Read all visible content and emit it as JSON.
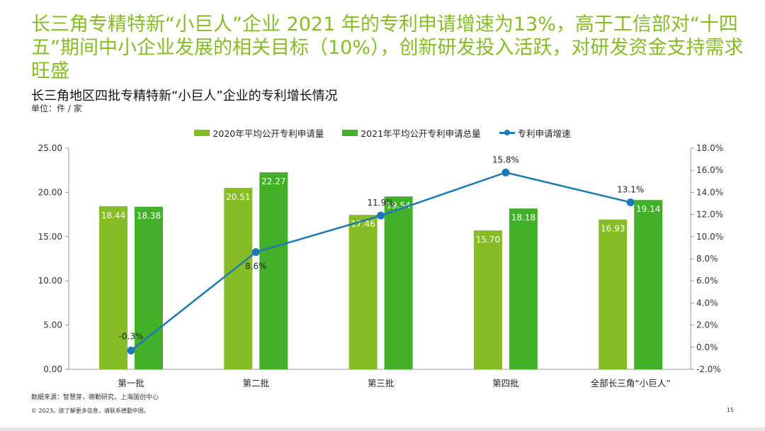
{
  "headline": "长三角专精特新“小巨人”企业 2021 年的专利申请增速为13%，高于工信部对“十四五”期间中小企业发展的相关目标（10%），创新研发投入活跃，对研发资金支持需求旺盛",
  "colors": {
    "headline": "#86BC25",
    "series_2020": "#86BC25",
    "series_2021": "#43B02A",
    "growth_line": "#1B7AB3"
  },
  "chart_data": {
    "type": "bar",
    "title": "长三角地区四批专精特新“小巨人”企业的专利增长情况",
    "unit": "单位：件 / 家",
    "legend_position": "top",
    "categories": [
      "第一批",
      "第二批",
      "第三批",
      "第四批",
      "全部长三角“小巨人”"
    ],
    "series": [
      {
        "name": "2020年平均公开专利申请量",
        "type": "bar",
        "axis": "left",
        "values": [
          18.44,
          20.51,
          17.46,
          15.7,
          16.93
        ],
        "labels": [
          "18.44",
          "20.51",
          "17.46",
          "15.70",
          "16.93"
        ]
      },
      {
        "name": "2021年平均公开专利申请总量",
        "type": "bar",
        "axis": "left",
        "values": [
          18.38,
          22.27,
          19.54,
          18.18,
          19.14
        ],
        "labels": [
          "18.38",
          "22.27",
          "19.54",
          "18.18",
          "19.14"
        ]
      },
      {
        "name": "专利申请增速",
        "type": "line",
        "axis": "right",
        "values": [
          -0.3,
          8.6,
          11.9,
          15.8,
          13.1
        ],
        "labels": [
          "-0.3%",
          "8.6%",
          "11.9%",
          "15.8%",
          "13.1%"
        ]
      }
    ],
    "y_left": {
      "range": [
        0,
        25
      ],
      "ticks": [
        "0.00",
        "5.00",
        "10.00",
        "15.00",
        "20.00",
        "25.00"
      ]
    },
    "y_right": {
      "range": [
        -2,
        18
      ],
      "ticks": [
        "-2.0%",
        "0.0%",
        "2.0%",
        "4.0%",
        "6.0%",
        "8.0%",
        "10.0%",
        "12.0%",
        "14.0%",
        "16.0%",
        "18.0%"
      ]
    },
    "grid": false
  },
  "footer": {
    "source": "数据来源：智慧芽，德勤研究，上海国创中心",
    "copyright": "© 2023。欲了解更多信息，请联系德勤中国。",
    "page": "15"
  }
}
